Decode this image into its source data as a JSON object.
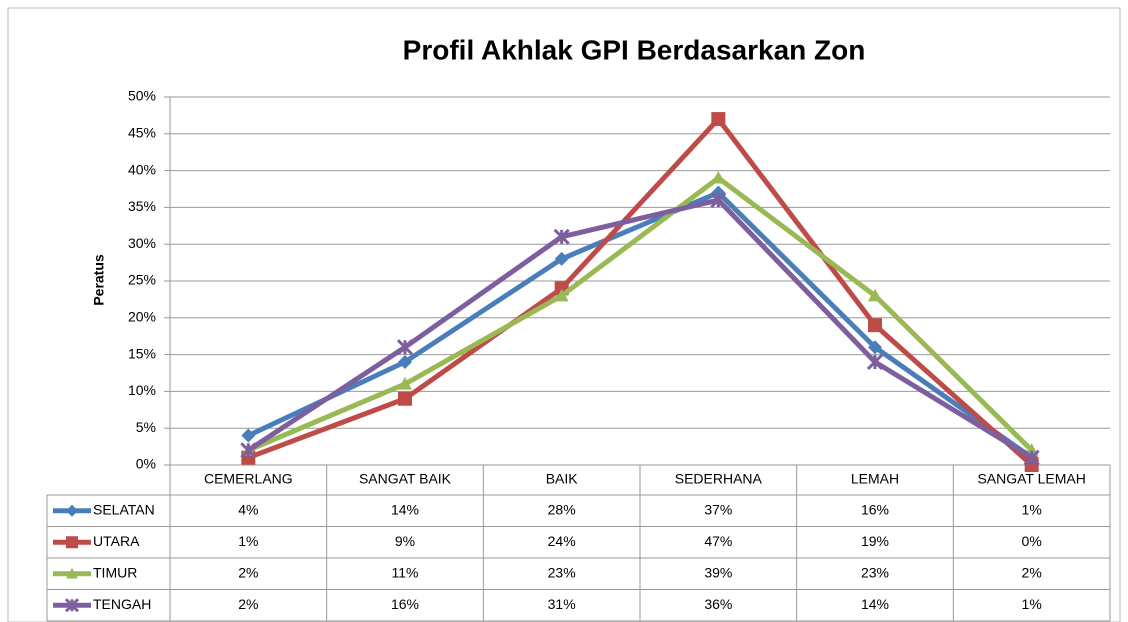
{
  "chart_data": {
    "type": "line",
    "title": "Profil Akhlak GPI Berdasarkan Zon",
    "y_label": "Peratus",
    "categories": [
      "CEMERLANG",
      "SANGAT BAIK",
      "BAIK",
      "SEDERHANA",
      "LEMAH",
      "SANGAT LEMAH"
    ],
    "ylim": [
      0,
      50
    ],
    "yticks": [
      {
        "value": 0,
        "label": "0%"
      },
      {
        "value": 5,
        "label": "5%"
      },
      {
        "value": 10,
        "label": "10%"
      },
      {
        "value": 15,
        "label": "15%"
      },
      {
        "value": 20,
        "label": "20%"
      },
      {
        "value": 25,
        "label": "25%"
      },
      {
        "value": 30,
        "label": "30%"
      },
      {
        "value": 35,
        "label": "35%"
      },
      {
        "value": 40,
        "label": "40%"
      },
      {
        "value": 45,
        "label": "45%"
      },
      {
        "value": 50,
        "label": "50%"
      }
    ],
    "grid": true,
    "series": [
      {
        "name": "SELATAN",
        "color": "#4a7ebb",
        "marker": "diamond",
        "values": [
          4,
          14,
          28,
          37,
          16,
          1
        ],
        "value_labels": [
          "4%",
          "14%",
          "28%",
          "37%",
          "16%",
          "1%"
        ]
      },
      {
        "name": "UTARA",
        "color": "#be4b48",
        "marker": "square",
        "values": [
          1,
          9,
          24,
          47,
          19,
          0
        ],
        "value_labels": [
          "1%",
          "9%",
          "24%",
          "47%",
          "19%",
          "0%"
        ]
      },
      {
        "name": "TIMUR",
        "color": "#98b954",
        "marker": "triangle",
        "values": [
          2,
          11,
          23,
          39,
          23,
          2
        ],
        "value_labels": [
          "2%",
          "11%",
          "23%",
          "39%",
          "23%",
          "2%"
        ]
      },
      {
        "name": "TENGAH",
        "color": "#7d5fa0",
        "marker": "cross",
        "values": [
          2,
          16,
          31,
          36,
          14,
          1
        ],
        "value_labels": [
          "2%",
          "16%",
          "31%",
          "36%",
          "14%",
          "1%"
        ]
      }
    ]
  }
}
